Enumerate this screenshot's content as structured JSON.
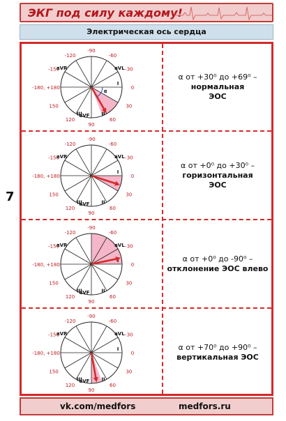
{
  "page_number": "7",
  "header": {
    "title": "ЭКГ под силу каждому!"
  },
  "subheader": {
    "title": "Электрическая ось сердца"
  },
  "angle_labels": {
    "m120": "-120",
    "m90": "-90",
    "m60": "-60",
    "m150": "-150",
    "m30": "-30",
    "p180": "-180, +180",
    "p0": "0",
    "p150": "150",
    "p30": "30",
    "p120": "120",
    "p90": "90",
    "p60": "60",
    "deg": "0"
  },
  "leads": {
    "avr": "aVR",
    "avl": "aVL",
    "i": "I",
    "ii": "II",
    "iii": "III",
    "avf": "aVF"
  },
  "alpha": "α",
  "rows": [
    {
      "range": "α от +30⁰ до +69⁰ –",
      "desc_line1": "нормальная",
      "desc_line2": "ЭОС"
    },
    {
      "range": "α от +0⁰ до +30⁰ –",
      "desc_line1": "горизонтальная",
      "desc_line2": "ЭОС"
    },
    {
      "range": "α от +0⁰ до -90⁰ –",
      "desc_line1": "отклонение ЭОС влево",
      "desc_line2": ""
    },
    {
      "range": "α от +70⁰ до +90⁰ –",
      "desc_line1": "вертикальная ЭОС",
      "desc_line2": ""
    }
  ],
  "footer": {
    "left": "vk.com/medfors",
    "right": "medfors.ru"
  },
  "colors": {
    "accent": "#d32a2a",
    "sector": "#f4b6c8",
    "header_bg": "#f1cdcd",
    "subheader_bg": "#cfe0ec"
  }
}
